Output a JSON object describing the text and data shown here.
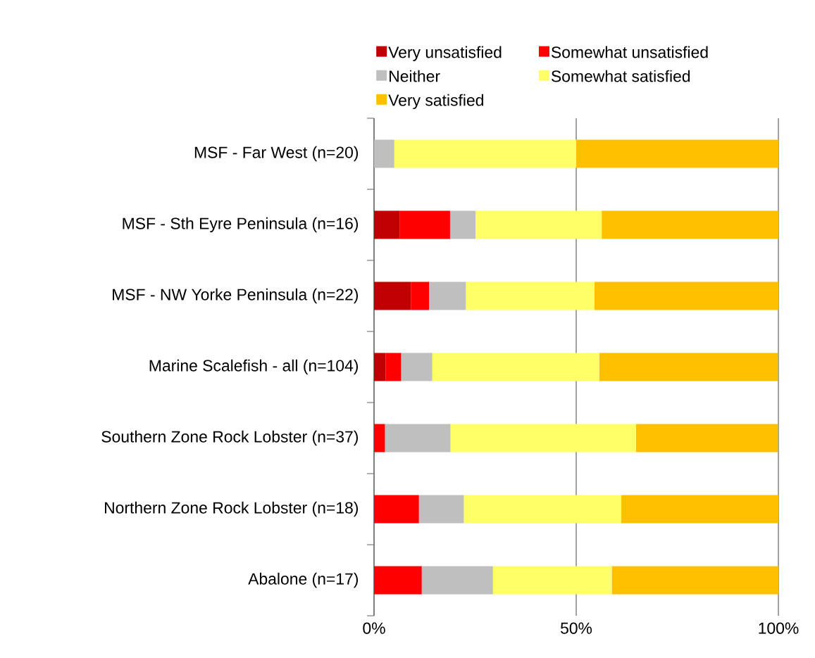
{
  "chart_data": {
    "type": "bar",
    "orientation": "horizontal",
    "stacked": true,
    "categories": [
      "MSF - Far West (n=20)",
      "MSF - Sth Eyre Peninsula (n=16)",
      "MSF - NW Yorke Peninsula (n=22)",
      "Marine Scalefish - all (n=104)",
      "Southern Zone Rock Lobster (n=37)",
      "Northern Zone Rock Lobster (n=18)",
      "Abalone (n=17)"
    ],
    "series": [
      {
        "name": "Very unsatisfied",
        "color": "#c00000",
        "values": [
          0,
          6.3,
          9.1,
          2.9,
          0,
          0,
          0
        ]
      },
      {
        "name": "Somewhat unsatisfied",
        "color": "#ff0000",
        "values": [
          0,
          12.5,
          4.5,
          3.8,
          2.7,
          11.1,
          11.8
        ]
      },
      {
        "name": "Neither",
        "color": "#bfbfbf",
        "values": [
          5,
          6.3,
          9.1,
          7.7,
          16.2,
          11.1,
          17.6
        ]
      },
      {
        "name": "Somewhat satisfied",
        "color": "#ffff66",
        "values": [
          45,
          31.2,
          31.8,
          41.3,
          45.9,
          38.9,
          29.4
        ]
      },
      {
        "name": "Very satisfied",
        "color": "#ffc000",
        "values": [
          50,
          43.7,
          45.5,
          44.2,
          35.1,
          38.9,
          41.2
        ]
      }
    ],
    "xlim": [
      0,
      100
    ],
    "xticks": [
      {
        "value": 0,
        "label": "0%"
      },
      {
        "value": 50,
        "label": "50%"
      },
      {
        "value": 100,
        "label": "100%"
      }
    ],
    "grid": "x",
    "legend": "top"
  }
}
